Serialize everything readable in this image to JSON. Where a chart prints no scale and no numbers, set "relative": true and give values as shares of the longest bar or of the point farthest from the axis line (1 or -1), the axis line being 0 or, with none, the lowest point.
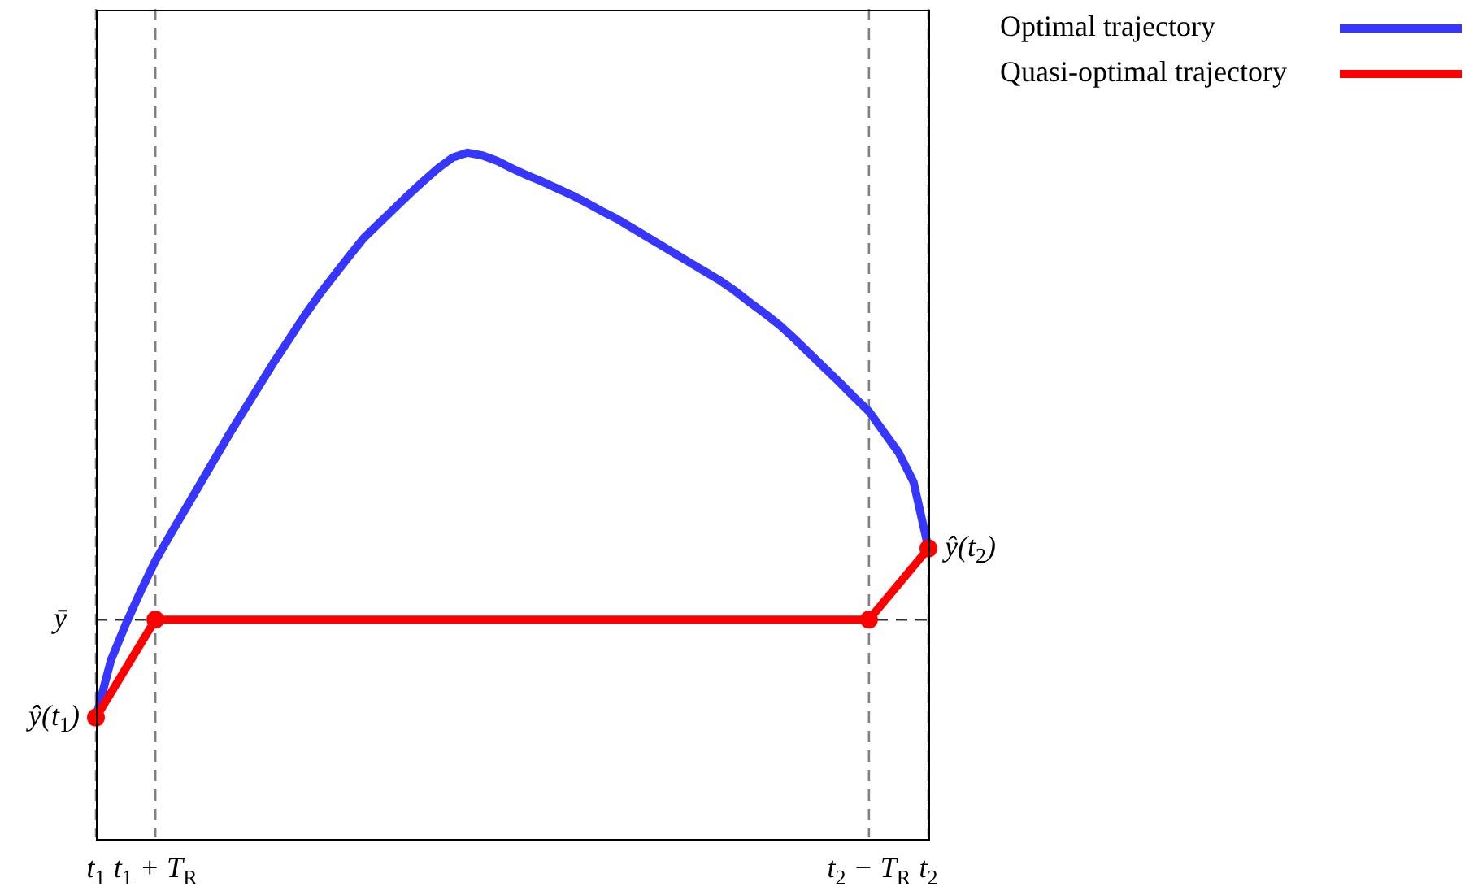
{
  "chart_data": {
    "type": "line",
    "relative": true,
    "legend": "top right",
    "grid": "x",
    "categories": [
      "t$_{1}$",
      null,
      null,
      null,
      "t$_{1}$ + T$_{R}$",
      null,
      null,
      null,
      null,
      null,
      null,
      null,
      null,
      null,
      null,
      null,
      null,
      null,
      null,
      null,
      null,
      null,
      null,
      null,
      null,
      null,
      null,
      null,
      null,
      null,
      null,
      null,
      null,
      null,
      null,
      null,
      null,
      null,
      null,
      null,
      null,
      null,
      null,
      null,
      null,
      null,
      null,
      null,
      null,
      null,
      null,
      null,
      "t$_{2}$ − T$_{R}$",
      null,
      null,
      null,
      "t$_{2}$"
    ],
    "series": [
      {
        "name": "Optimal trajectory",
        "color": "#3636ff",
        "marker": "none",
        "values": [
          0.175,
          0.258,
          0.311,
          0.359,
          0.404,
          0.442,
          0.479,
          0.516,
          0.553,
          0.59,
          0.625,
          0.66,
          0.695,
          0.728,
          0.761,
          0.792,
          0.82,
          0.848,
          0.875,
          0.896,
          0.917,
          0.938,
          0.958,
          0.977,
          0.993,
          1,
          0.996,
          0.988,
          0.977,
          0.967,
          0.958,
          0.948,
          0.938,
          0.927,
          0.915,
          0.904,
          0.891,
          0.878,
          0.865,
          0.852,
          0.839,
          0.826,
          0.813,
          0.798,
          0.781,
          0.765,
          0.748,
          0.728,
          0.707,
          0.686,
          0.665,
          0.643,
          0.622,
          0.592,
          0.562,
          0.519,
          0.422
        ]
      },
      {
        "name": "Quasi-optimal trajectory",
        "color": "#ff0000",
        "marker": "circle",
        "x": [
          "t$_{1}$",
          "t$_{1}$ + T$_{R}$",
          "t$_{2}$ − T$_{R}$",
          "t$_{2}$"
        ],
        "values": [
          0.175,
          0.318,
          0.318,
          0.422
        ]
      }
    ],
    "ref_lines": [
      {
        "axis": "y",
        "value": 0.318,
        "label": "ȳ",
        "color": "#333333",
        "line_style": "dashed"
      }
    ],
    "annotations": [
      {
        "text": "ŷ(t$_{1}$)",
        "x": "t$_{1}$",
        "y": 0.175
      },
      {
        "text": "ŷ(t$_{2}$)",
        "x": "t$_{2}$",
        "y": 0.422
      }
    ]
  }
}
